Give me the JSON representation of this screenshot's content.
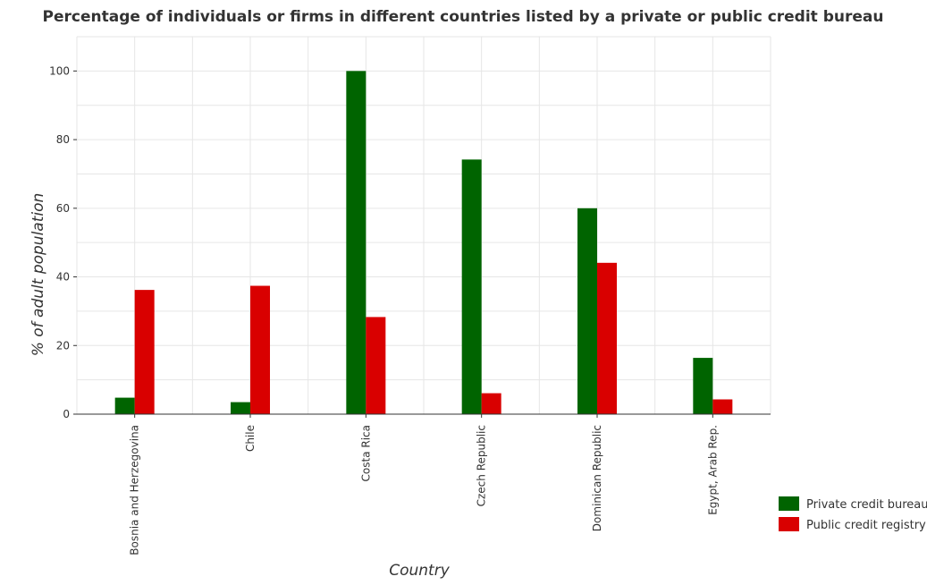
{
  "chart_data": {
    "type": "bar",
    "title": "Percentage of individuals or firms in different countries listed by a private or public credit bureau",
    "xlabel": "Country",
    "ylabel": "% of adult population",
    "categories": [
      "Bosnia and Herzegovina",
      "Chile",
      "Costa Rica",
      "Czech Republic",
      "Dominican Republic",
      "Egypt, Arab Rep."
    ],
    "series": [
      {
        "name": "Private credit bureau",
        "color": "#006400",
        "values": [
          4.8,
          3.5,
          100,
          74.2,
          60.0,
          16.4
        ]
      },
      {
        "name": "Public credit registry",
        "color": "#d90000",
        "values": [
          36.2,
          37.4,
          28.3,
          6.1,
          44.1,
          4.3
        ]
      }
    ],
    "ylim": [
      0,
      110
    ],
    "yticks": [
      0,
      20,
      40,
      60,
      80,
      100
    ],
    "grid": true,
    "legend_position": "bottom-right"
  }
}
